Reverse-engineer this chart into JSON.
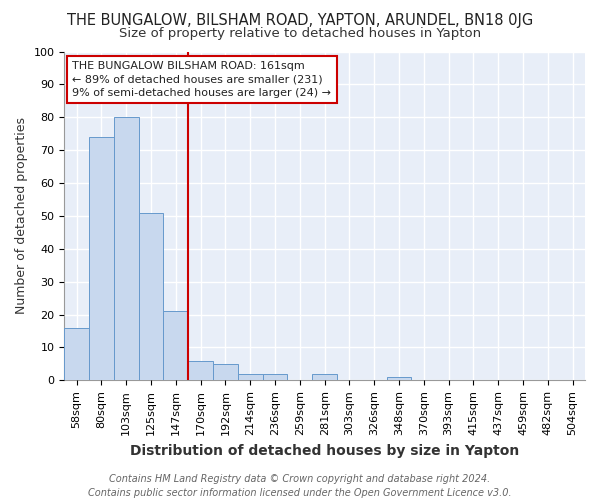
{
  "title": "THE BUNGALOW, BILSHAM ROAD, YAPTON, ARUNDEL, BN18 0JG",
  "subtitle": "Size of property relative to detached houses in Yapton",
  "xlabel": "Distribution of detached houses by size in Yapton",
  "ylabel": "Number of detached properties",
  "bin_labels": [
    "58sqm",
    "80sqm",
    "103sqm",
    "125sqm",
    "147sqm",
    "170sqm",
    "192sqm",
    "214sqm",
    "236sqm",
    "259sqm",
    "281sqm",
    "303sqm",
    "326sqm",
    "348sqm",
    "370sqm",
    "393sqm",
    "415sqm",
    "437sqm",
    "459sqm",
    "482sqm",
    "504sqm"
  ],
  "bar_heights": [
    16,
    74,
    80,
    51,
    21,
    6,
    5,
    2,
    2,
    0,
    2,
    0,
    0,
    1,
    0,
    0,
    0,
    0,
    0,
    0,
    0
  ],
  "bar_color": "#c8d8ee",
  "bar_edge_color": "#6699cc",
  "vline_pos": 4.5,
  "vline_color": "#cc0000",
  "annotation_text": "THE BUNGALOW BILSHAM ROAD: 161sqm\n← 89% of detached houses are smaller (231)\n9% of semi-detached houses are larger (24) →",
  "annotation_box_facecolor": "#ffffff",
  "annotation_box_edgecolor": "#cc0000",
  "ylim": [
    0,
    100
  ],
  "yticks": [
    0,
    10,
    20,
    30,
    40,
    50,
    60,
    70,
    80,
    90,
    100
  ],
  "footnote": "Contains HM Land Registry data © Crown copyright and database right 2024.\nContains public sector information licensed under the Open Government Licence v3.0.",
  "fig_bg_color": "#ffffff",
  "plot_bg_color": "#e8eef8",
  "title_fontsize": 10.5,
  "subtitle_fontsize": 9.5,
  "xlabel_fontsize": 10,
  "ylabel_fontsize": 9,
  "tick_fontsize": 8,
  "annotation_fontsize": 8,
  "footnote_fontsize": 7,
  "grid_color": "#ffffff",
  "grid_linewidth": 1.0
}
